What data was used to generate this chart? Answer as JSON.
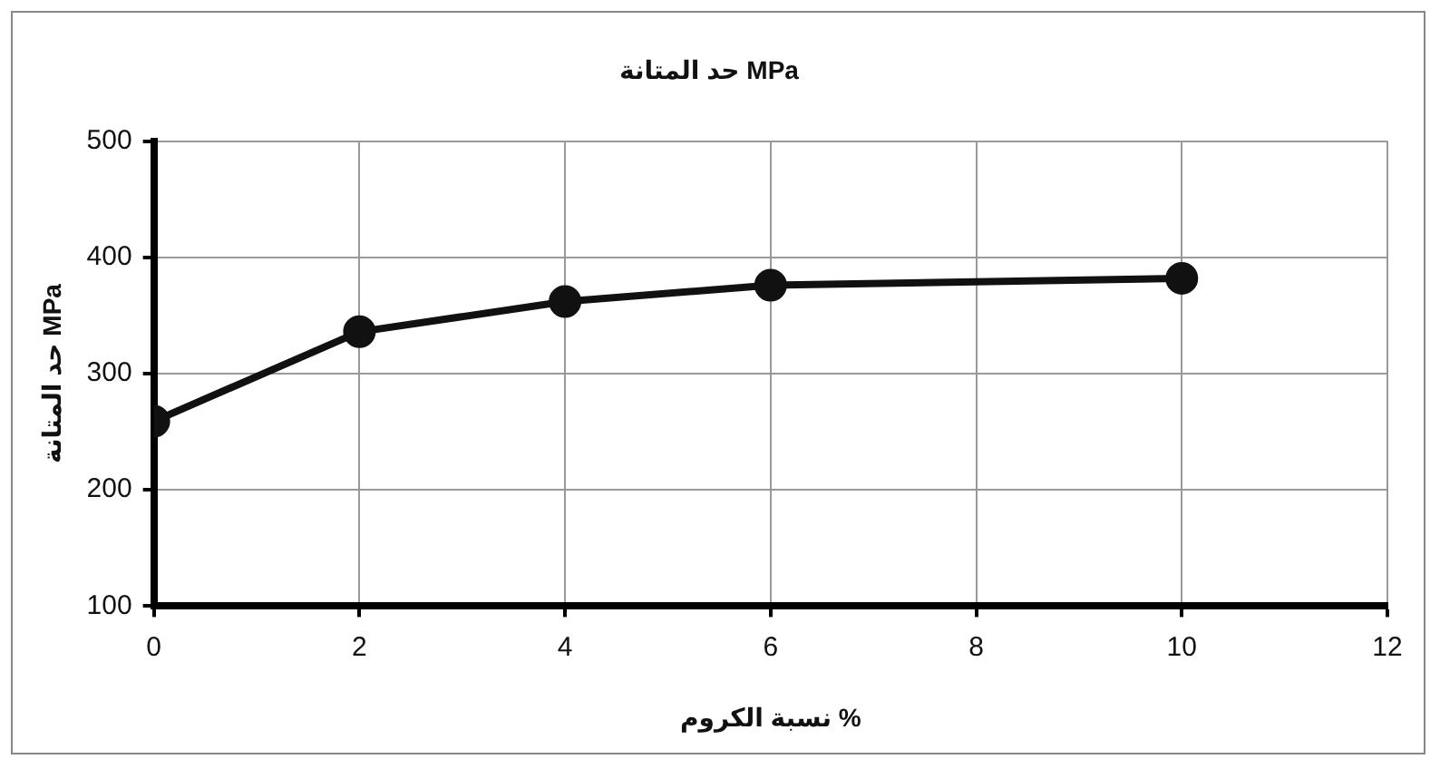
{
  "chart_data": {
    "type": "line",
    "title": "حد المتانة MPa",
    "xlabel": "نسبة الكروم %",
    "ylabel": "حد المتانة MPa",
    "x": [
      0,
      2,
      4,
      6,
      10
    ],
    "series": [
      {
        "color": "#111111",
        "values": [
          259,
          336,
          362,
          376,
          382
        ]
      }
    ],
    "xlim": [
      0,
      12
    ],
    "xticks": [
      0,
      2,
      4,
      6,
      8,
      10,
      12
    ],
    "ylim": [
      100,
      500
    ],
    "yticks": [
      100,
      200,
      300,
      400,
      500
    ],
    "grid": true,
    "legend": false,
    "marker": "circle",
    "line_style": "solid"
  }
}
